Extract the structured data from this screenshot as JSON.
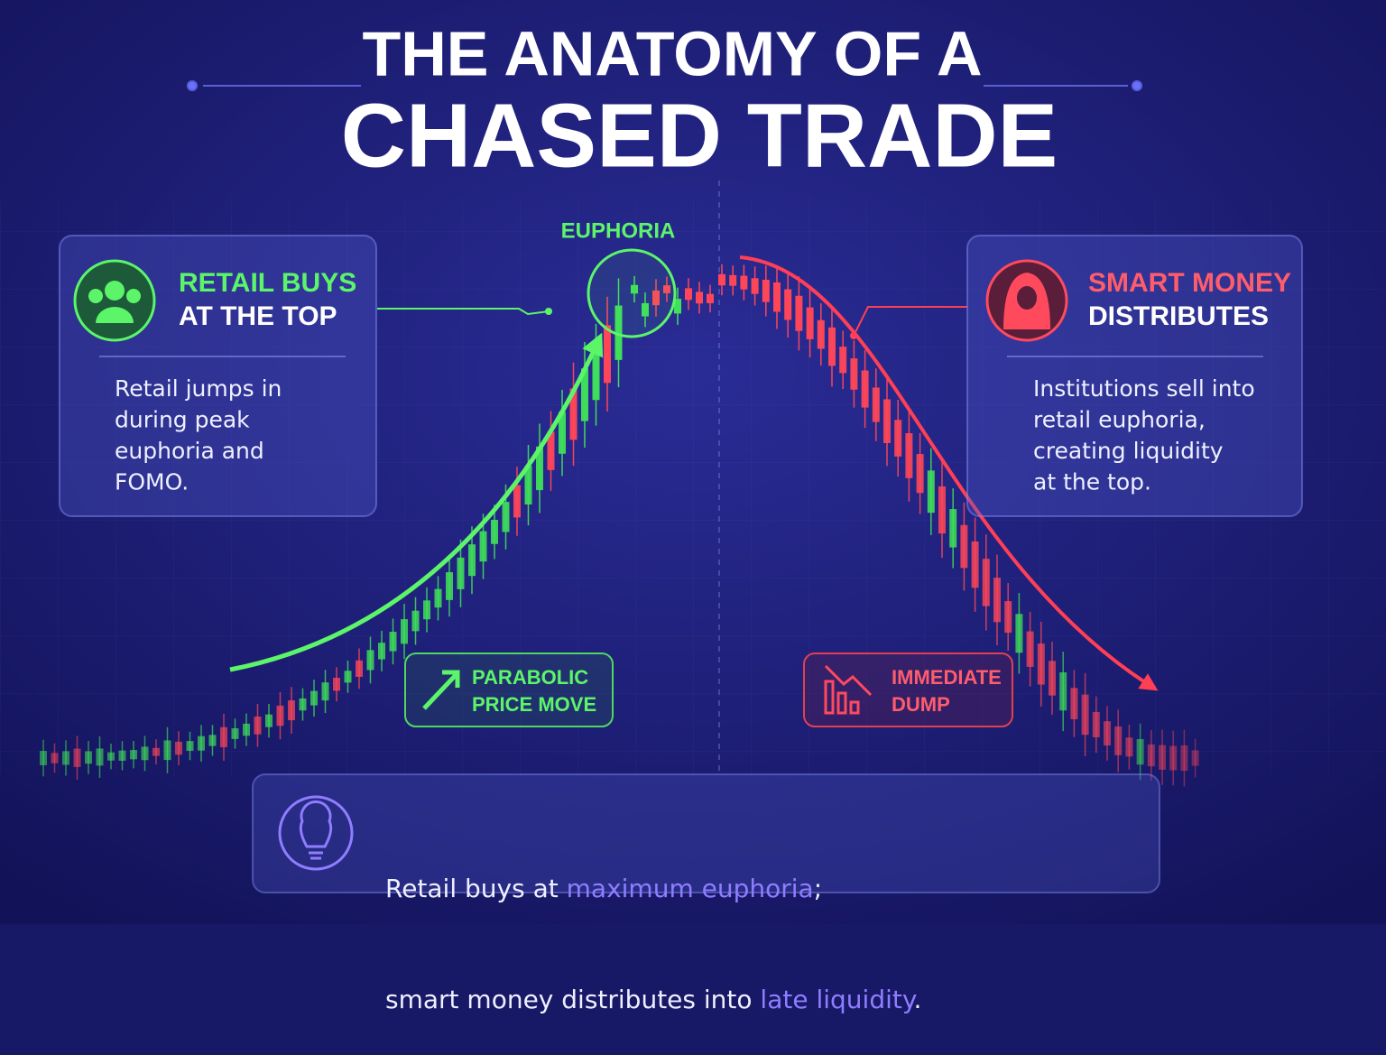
{
  "title": {
    "line1": "THE ANATOMY OF A",
    "line2": "CHASED TRADE"
  },
  "peak_label": "EUPHORIA",
  "left_card": {
    "title_line1": "RETAIL BUYS",
    "title_line2": "AT THE TOP",
    "body": [
      "Retail jumps in",
      "during peak",
      "euphoria and",
      "FOMO."
    ]
  },
  "right_card": {
    "title_line1": "SMART MONEY",
    "title_line2": "DISTRIBUTES",
    "body": [
      "Institutions sell into",
      "retail euphoria,",
      "creating liquidity",
      "at the top."
    ]
  },
  "rise_badge": {
    "line1": "PARABOLIC",
    "line2": "PRICE MOVE"
  },
  "fall_badge": {
    "line1": "IMMEDIATE",
    "line2": "DUMP"
  },
  "footer": {
    "line1": [
      "Retail buys at ",
      "maximum euphoria",
      ";"
    ],
    "line2": [
      "smart money distributes into ",
      "late liquidity",
      "."
    ]
  }
}
